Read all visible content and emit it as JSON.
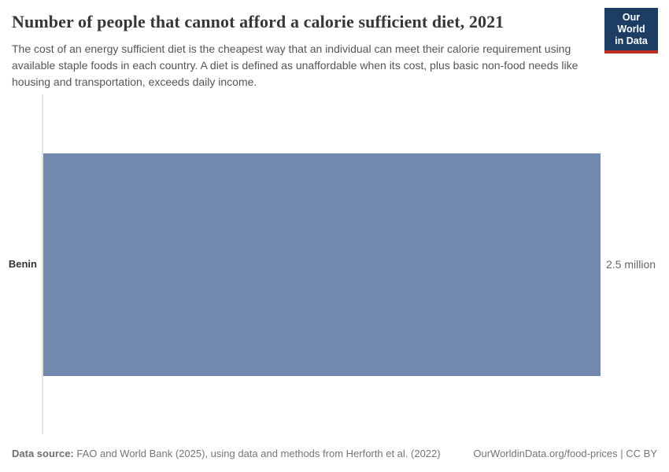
{
  "header": {
    "title": "Number of people that cannot afford a calorie sufficient diet, 2021",
    "subtitle": "The cost of an energy sufficient diet is the cheapest way that an individual can meet their calorie requirement using available staple foods in each country. A diet is defined as unaffordable when its cost, plus basic non-food needs like housing and transportation, exceeds daily income.",
    "logo": {
      "line1": "Our World",
      "line2": "in Data"
    }
  },
  "chart_data": {
    "type": "bar",
    "orientation": "horizontal",
    "title": "Number of people that cannot afford a calorie sufficient diet, 2021",
    "categories": [
      "Benin"
    ],
    "values": [
      2500000
    ],
    "value_labels": [
      "2.5 million"
    ],
    "xlabel": "",
    "ylabel": "",
    "xlim": [
      0,
      2500000
    ],
    "grid": false,
    "legend": false,
    "bar_color": "#7288ad",
    "axis_line_color": "#e2e2e2"
  },
  "footer": {
    "data_source_label": "Data source:",
    "data_source_text": " FAO and World Bank (2025), using data and methods from Herforth et al. (2022)",
    "link_text": "OurWorldinData.org/food-prices | CC BY"
  },
  "colors": {
    "title": "#383636",
    "subtitle": "#555555",
    "bar": "#7288ad",
    "logo_bg": "#1d3d63",
    "logo_red": "#bf2e26",
    "footer_text": "#757575"
  }
}
